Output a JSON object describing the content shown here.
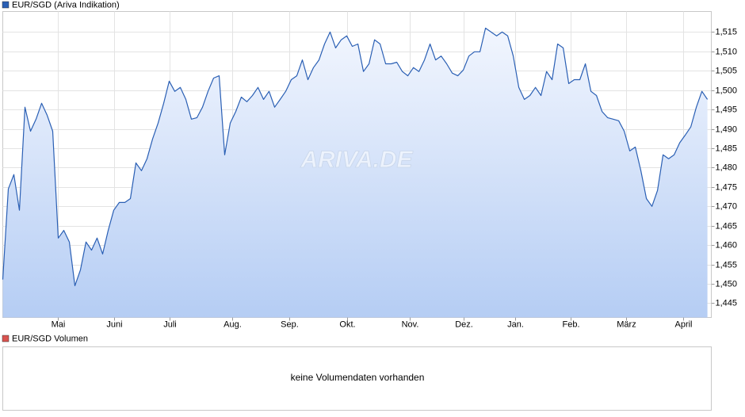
{
  "chart_data": {
    "type": "line",
    "watermark": "ARIVA.DE",
    "series": [
      {
        "name": "EUR/SGD (Ariva Indikation)",
        "color": "#2a5fb4",
        "values": [
          1.4511,
          1.4745,
          1.4782,
          1.469,
          1.4956,
          1.4894,
          1.4925,
          1.4966,
          1.4935,
          1.4894,
          1.4618,
          1.4638,
          1.4608,
          1.4495,
          1.4536,
          1.4608,
          1.4587,
          1.4618,
          1.4577,
          1.4638,
          1.469,
          1.471,
          1.471,
          1.472,
          1.4812,
          1.4792,
          1.4823,
          1.4874,
          1.4915,
          1.4966,
          1.5023,
          1.4997,
          1.5007,
          1.4976,
          1.4925,
          1.4929,
          1.4956,
          1.4997,
          1.5031,
          1.5037,
          1.4833,
          1.4915,
          1.4945,
          1.4982,
          1.497,
          1.4986,
          1.5007,
          1.4976,
          1.4997,
          1.4956,
          1.4976,
          1.4997,
          1.5027,
          1.5037,
          1.5078,
          1.5027,
          1.5058,
          1.5078,
          1.5119,
          1.515,
          1.5109,
          1.513,
          1.514,
          1.5113,
          1.5119,
          1.5048,
          1.5068,
          1.513,
          1.5119,
          1.5068,
          1.5068,
          1.5072,
          1.5048,
          1.5037,
          1.5058,
          1.5048,
          1.5078,
          1.5119,
          1.5078,
          1.5088,
          1.5068,
          1.5044,
          1.5037,
          1.5052,
          1.5088,
          1.5099,
          1.5099,
          1.516,
          1.515,
          1.514,
          1.515,
          1.514,
          1.5088,
          1.5007,
          1.4976,
          1.4986,
          1.5007,
          1.4986,
          1.5048,
          1.5027,
          1.5119,
          1.5109,
          1.5017,
          1.5027,
          1.5027,
          1.5068,
          1.4997,
          1.4986,
          1.4945,
          1.4929,
          1.4925,
          1.4921,
          1.4894,
          1.4843,
          1.4853,
          1.4792,
          1.472,
          1.47,
          1.4741,
          1.4833,
          1.4823,
          1.4833,
          1.4864,
          1.4884,
          1.4905,
          1.4956,
          1.4997,
          1.4976
        ]
      }
    ],
    "xlim": [
      0,
      127.7
    ],
    "xticks": [
      {
        "value": 9.9,
        "label": "Mai"
      },
      {
        "value": 20.1,
        "label": "Juni"
      },
      {
        "value": 30.1,
        "label": "Juli"
      },
      {
        "value": 41.3,
        "label": "Aug."
      },
      {
        "value": 51.6,
        "label": "Sep."
      },
      {
        "value": 62,
        "label": "Okt."
      },
      {
        "value": 73.3,
        "label": "Nov."
      },
      {
        "value": 83.1,
        "label": "Dez."
      },
      {
        "value": 92.4,
        "label": "Jan."
      },
      {
        "value": 102.3,
        "label": "Feb."
      },
      {
        "value": 112.3,
        "label": "März"
      },
      {
        "value": 122.7,
        "label": "April"
      }
    ],
    "ylim": [
      1.4413,
      1.5203
    ],
    "yticks": [
      {
        "value": 1.445,
        "label": "1,445"
      },
      {
        "value": 1.45,
        "label": "1,450"
      },
      {
        "value": 1.455,
        "label": "1,455"
      },
      {
        "value": 1.46,
        "label": "1,460"
      },
      {
        "value": 1.465,
        "label": "1,465"
      },
      {
        "value": 1.47,
        "label": "1,470"
      },
      {
        "value": 1.475,
        "label": "1,475"
      },
      {
        "value": 1.48,
        "label": "1,480"
      },
      {
        "value": 1.485,
        "label": "1,485"
      },
      {
        "value": 1.49,
        "label": "1,490"
      },
      {
        "value": 1.495,
        "label": "1,495"
      },
      {
        "value": 1.5,
        "label": "1,500"
      },
      {
        "value": 1.505,
        "label": "1,505"
      },
      {
        "value": 1.51,
        "label": "1,510"
      },
      {
        "value": 1.515,
        "label": "1,515"
      }
    ],
    "grid": true
  },
  "volume_panel": {
    "legend": "EUR/SGD Volumen",
    "color": "#d9534f",
    "message": "keine Volumendaten vorhanden"
  }
}
